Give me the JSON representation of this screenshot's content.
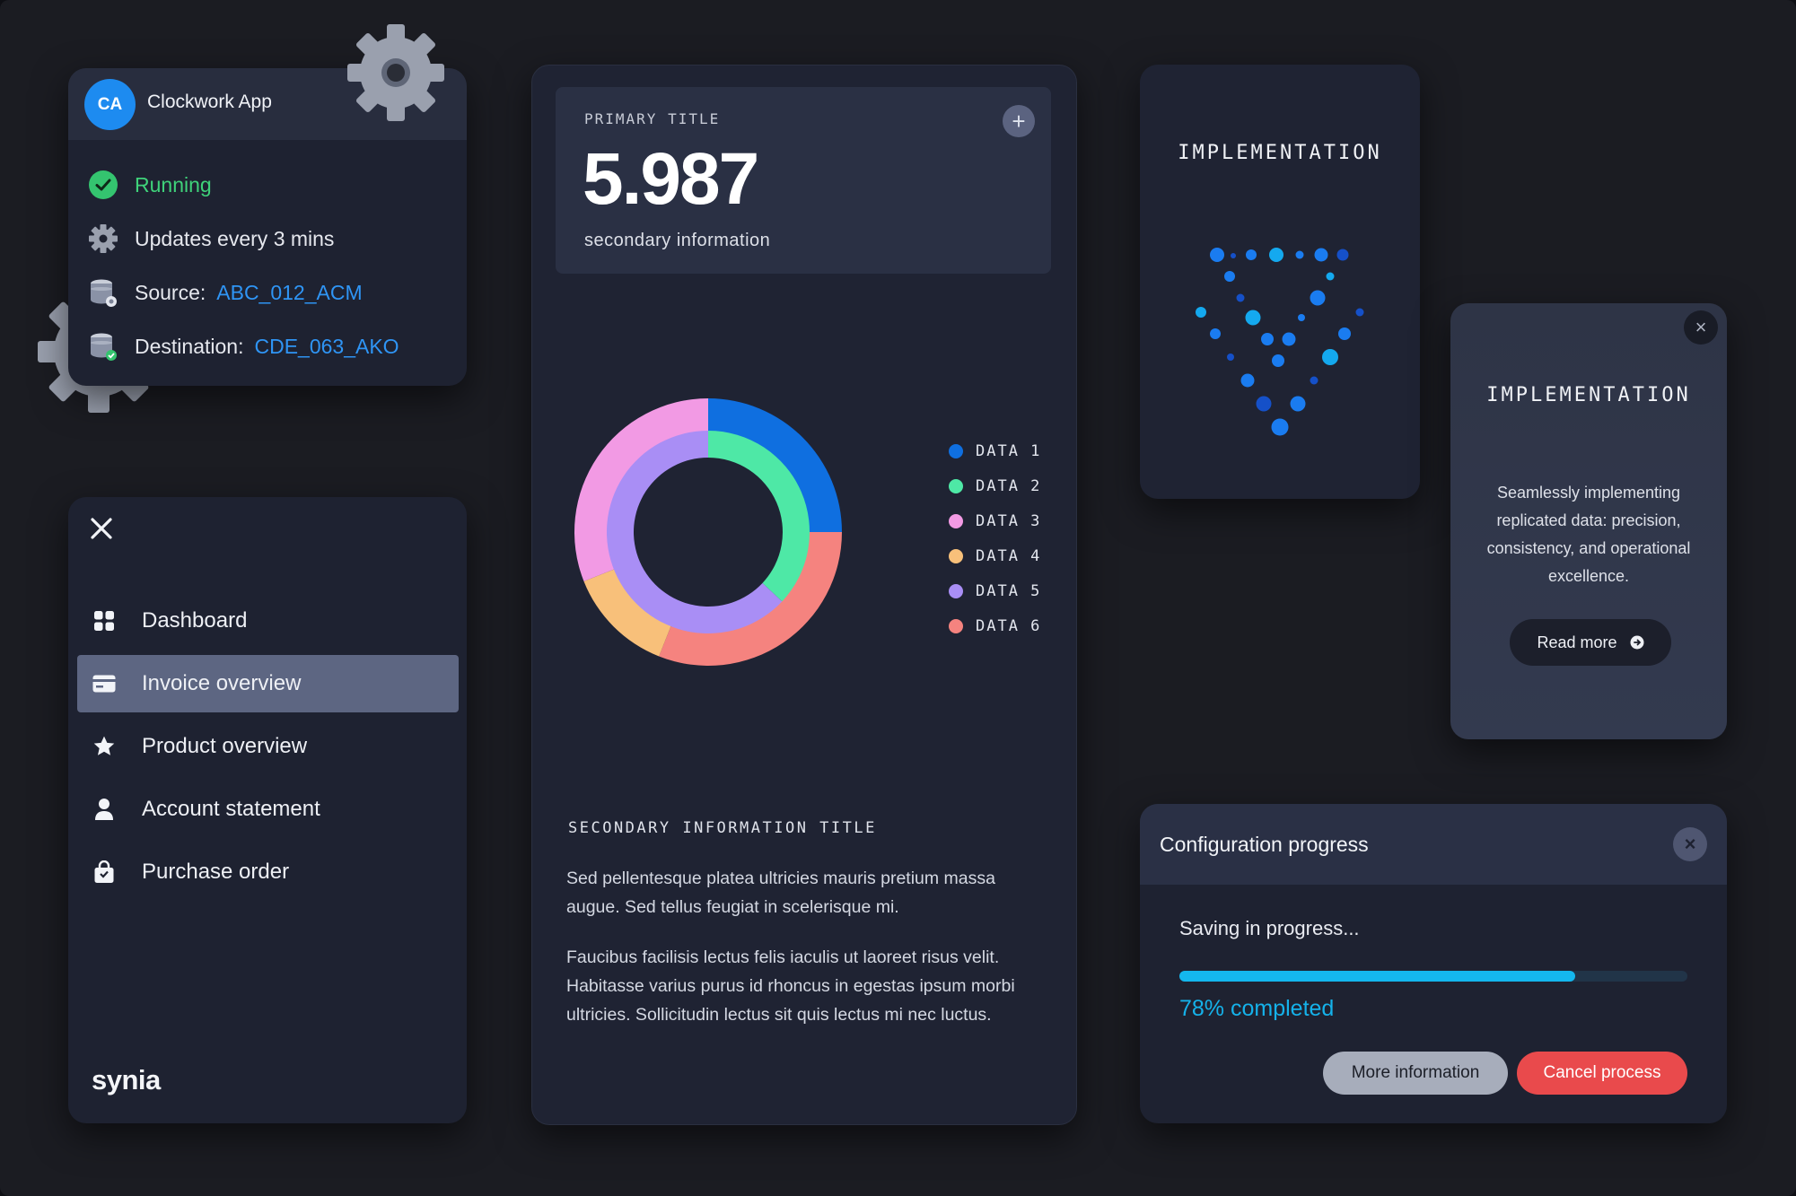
{
  "app_card": {
    "avatar": "CA",
    "title": "Clockwork App",
    "status": "Running",
    "update": "Updates every 3 mins",
    "source_label": "Source:",
    "source_value": "ABC_012_ACM",
    "dest_label": "Destination:",
    "dest_value": "CDE_063_AKO"
  },
  "nav": {
    "items": [
      {
        "label": "Dashboard",
        "icon": "grid-icon"
      },
      {
        "label": "Invoice overview",
        "icon": "card-icon"
      },
      {
        "label": "Product overview",
        "icon": "star-icon"
      },
      {
        "label": "Account statement",
        "icon": "user-icon"
      },
      {
        "label": "Purchase order",
        "icon": "bag-icon"
      }
    ],
    "active_index": 1,
    "brand": "synia"
  },
  "center": {
    "kpi_label": "PRIMARY TITLE",
    "kpi_value": "5.987",
    "kpi_sub": "secondary information",
    "secondary_title": "SECONDARY INFORMATION TITLE",
    "para1": "Sed pellentesque platea ultricies mauris pretium massa augue. Sed tellus feugiat in scelerisque mi.",
    "para2": "Faucibus facilisis lectus felis iaculis ut laoreet risus velit. Habitasse varius purus id rhoncus in egestas ipsum morbi ultricies. Sollicitudin lectus sit quis lectus mi nec luctus."
  },
  "chart_data": {
    "type": "pie",
    "variant": "double-donut",
    "legend": [
      "DATA 1",
      "DATA 2",
      "DATA 3",
      "DATA 4",
      "DATA 5",
      "DATA 6"
    ],
    "colors": [
      "#0f6fe0",
      "#4ee8a6",
      "#f29ae4",
      "#f8c07a",
      "#a98ef5",
      "#f5837f"
    ],
    "outer_ring": [
      {
        "series": "DATA 1",
        "value": 25
      },
      {
        "series": "DATA 6",
        "value": 31
      },
      {
        "series": "DATA 4",
        "value": 13
      },
      {
        "series": "DATA 3",
        "value": 31
      }
    ],
    "inner_ring": [
      {
        "series": "DATA 2",
        "value": 37
      },
      {
        "series": "DATA 5",
        "value": 63
      }
    ]
  },
  "impl": {
    "title": "IMPLEMENTATION"
  },
  "impl2": {
    "title": "IMPLEMENTATION",
    "body": "Seamlessly implementing replicated data: precision, consistency, and operational excellence.",
    "button": "Read more"
  },
  "config": {
    "title": "Configuration progress",
    "saving": "Saving in progress...",
    "progress": 0.78,
    "completed": "78% completed",
    "btn_more": "More information",
    "btn_cancel": "Cancel process"
  },
  "colors": {
    "accent": "#2f95f5",
    "running": "#3fd27a",
    "progress": "#14b7ee",
    "danger": "#e94a4c"
  }
}
